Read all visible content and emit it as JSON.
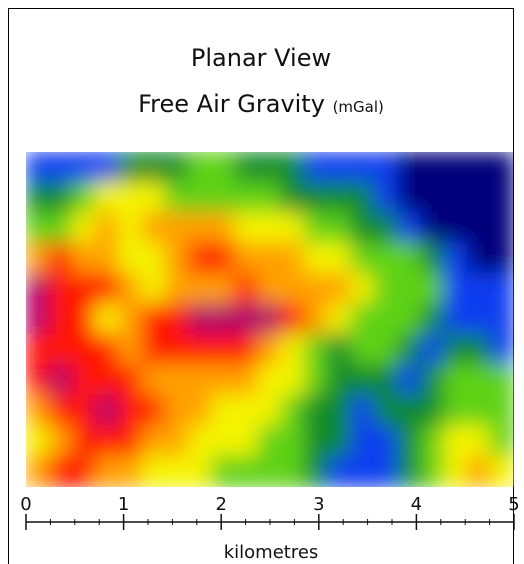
{
  "chart_data": {
    "type": "heatmap",
    "title": "Planar View",
    "subtitle": "Free Air Gravity",
    "units": "(mGal)",
    "xlabel": "kilometres",
    "xlim": [
      0,
      5
    ],
    "xticks": [
      "0",
      "1",
      "2",
      "3",
      "4",
      "5"
    ],
    "colormap": [
      "#00007a",
      "#0a3df0",
      "#0a8a2a",
      "#5fd218",
      "#f4f400",
      "#ffa000",
      "#ff1800",
      "#b0006a"
    ],
    "grid_values": [
      [
        1,
        1,
        1,
        1,
        2,
        2,
        2,
        3,
        3,
        2,
        2,
        2,
        1,
        1,
        1,
        1,
        0,
        0,
        0,
        0,
        0
      ],
      [
        2,
        2,
        3,
        4,
        4,
        4,
        3,
        3,
        3,
        3,
        3,
        2,
        2,
        2,
        2,
        1,
        0,
        0,
        0,
        0,
        0
      ],
      [
        3,
        3,
        4,
        5,
        4,
        5,
        5,
        5,
        5,
        4,
        4,
        4,
        3,
        3,
        2,
        2,
        1,
        0,
        0,
        0,
        0
      ],
      [
        5,
        6,
        5,
        5,
        4,
        4,
        5,
        6,
        6,
        5,
        5,
        5,
        4,
        4,
        3,
        3,
        3,
        2,
        1,
        0,
        0
      ],
      [
        7,
        6,
        6,
        6,
        5,
        4,
        5,
        5,
        5,
        6,
        5,
        5,
        5,
        5,
        4,
        3,
        3,
        3,
        1,
        1,
        1
      ],
      [
        7,
        6,
        6,
        4,
        5,
        6,
        6,
        7,
        7,
        7,
        7,
        6,
        5,
        4,
        3,
        3,
        3,
        2,
        1,
        1,
        1
      ],
      [
        6,
        6,
        6,
        6,
        5,
        6,
        6,
        6,
        6,
        6,
        5,
        4,
        3,
        2,
        3,
        3,
        2,
        1,
        2,
        2,
        1
      ],
      [
        6,
        7,
        6,
        6,
        6,
        5,
        5,
        5,
        5,
        5,
        4,
        4,
        3,
        2,
        2,
        2,
        1,
        2,
        3,
        3,
        3
      ],
      [
        5,
        6,
        6,
        7,
        6,
        6,
        5,
        5,
        4,
        4,
        4,
        3,
        2,
        2,
        1,
        2,
        2,
        2,
        3,
        3,
        3
      ],
      [
        4,
        5,
        6,
        6,
        6,
        5,
        5,
        4,
        4,
        4,
        3,
        3,
        2,
        2,
        1,
        1,
        2,
        3,
        4,
        4,
        3
      ],
      [
        5,
        6,
        6,
        5,
        5,
        4,
        4,
        4,
        3,
        3,
        3,
        3,
        2,
        1,
        1,
        1,
        2,
        3,
        4,
        5,
        4
      ]
    ]
  }
}
